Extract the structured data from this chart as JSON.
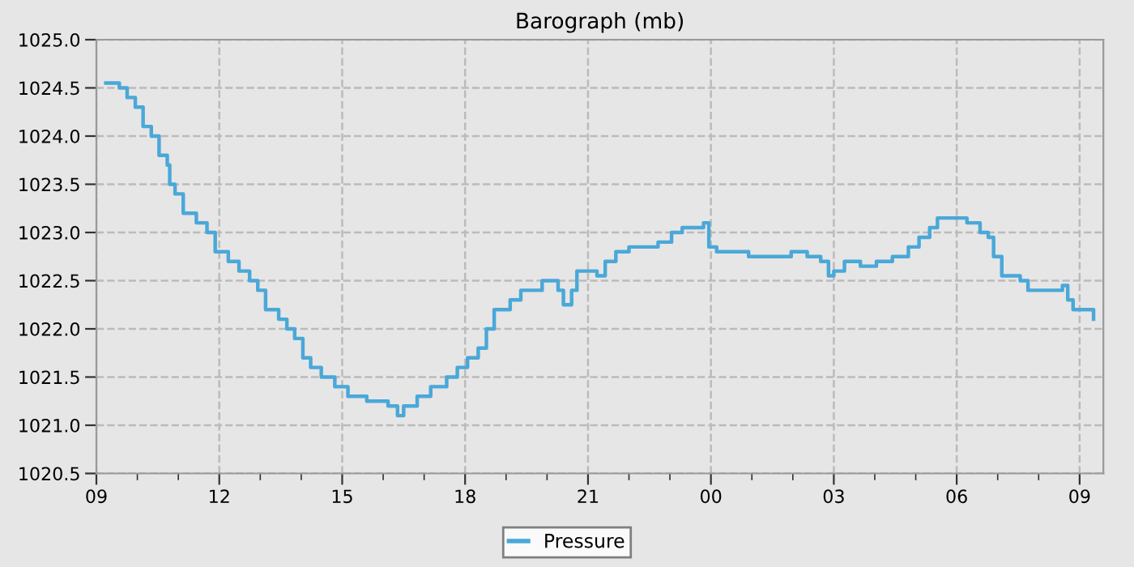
{
  "chart_data": {
    "type": "step",
    "title": "Barograph (mb)",
    "x": [
      9.23,
      9.56,
      9.75,
      9.95,
      10.14,
      10.34,
      10.53,
      10.73,
      10.79,
      10.92,
      11.12,
      11.44,
      11.7,
      11.9,
      12.22,
      12.48,
      12.74,
      12.94,
      13.13,
      13.45,
      13.65,
      13.84,
      14.04,
      14.23,
      14.49,
      14.82,
      15.14,
      15.6,
      16.12,
      16.35,
      16.5,
      16.83,
      17.16,
      17.55,
      17.81,
      18.06,
      18.32,
      18.52,
      18.71,
      19.1,
      19.36,
      19.88,
      20.27,
      20.4,
      20.6,
      20.73,
      21.22,
      21.42,
      21.68,
      22.0,
      22.32,
      22.71,
      23.04,
      23.3,
      23.62,
      23.82,
      23.95,
      24.14,
      24.53,
      24.92,
      25.44,
      25.96,
      26.35,
      26.68,
      26.87,
      27.0,
      27.26,
      27.65,
      28.04,
      28.43,
      28.82,
      29.08,
      29.34,
      29.53,
      29.79,
      30.25,
      30.57,
      30.77,
      30.9,
      31.1,
      31.55,
      31.74,
      32.2,
      32.58,
      32.71,
      32.84,
      33.3,
      33.34
    ],
    "series": [
      {
        "name": "Pressure",
        "color": "#4aa8d8",
        "values": [
          1024.55,
          1024.5,
          1024.4,
          1024.3,
          1024.1,
          1024.0,
          1023.8,
          1023.7,
          1023.5,
          1023.4,
          1023.2,
          1023.1,
          1023.0,
          1022.8,
          1022.7,
          1022.6,
          1022.5,
          1022.4,
          1022.2,
          1022.1,
          1022.0,
          1021.9,
          1021.7,
          1021.6,
          1021.5,
          1021.4,
          1021.3,
          1021.25,
          1021.2,
          1021.1,
          1021.2,
          1021.3,
          1021.4,
          1021.5,
          1021.6,
          1021.7,
          1021.8,
          1022.0,
          1022.2,
          1022.3,
          1022.4,
          1022.5,
          1022.4,
          1022.25,
          1022.4,
          1022.6,
          1022.55,
          1022.7,
          1022.8,
          1022.85,
          1022.85,
          1022.9,
          1023.0,
          1023.05,
          1023.05,
          1023.1,
          1022.85,
          1022.8,
          1022.8,
          1022.75,
          1022.75,
          1022.8,
          1022.75,
          1022.7,
          1022.55,
          1022.6,
          1022.7,
          1022.65,
          1022.7,
          1022.75,
          1022.85,
          1022.95,
          1023.05,
          1023.15,
          1023.15,
          1023.1,
          1023.0,
          1022.95,
          1022.75,
          1022.55,
          1022.5,
          1022.4,
          1022.4,
          1022.45,
          1022.3,
          1022.2,
          1022.2,
          1022.1
        ]
      }
    ],
    "xlim": [
      9,
      33.58
    ],
    "xticks": [
      {
        "value": 9,
        "label": "09"
      },
      {
        "value": 10,
        "label": null
      },
      {
        "value": 11,
        "label": null
      },
      {
        "value": 12,
        "label": "12"
      },
      {
        "value": 13,
        "label": null
      },
      {
        "value": 14,
        "label": null
      },
      {
        "value": 15,
        "label": "15"
      },
      {
        "value": 16,
        "label": null
      },
      {
        "value": 17,
        "label": null
      },
      {
        "value": 18,
        "label": "18"
      },
      {
        "value": 19,
        "label": null
      },
      {
        "value": 20,
        "label": null
      },
      {
        "value": 21,
        "label": "21"
      },
      {
        "value": 22,
        "label": null
      },
      {
        "value": 23,
        "label": null
      },
      {
        "value": 24,
        "label": "00"
      },
      {
        "value": 25,
        "label": null
      },
      {
        "value": 26,
        "label": null
      },
      {
        "value": 27,
        "label": "03"
      },
      {
        "value": 28,
        "label": null
      },
      {
        "value": 29,
        "label": null
      },
      {
        "value": 30,
        "label": "06"
      },
      {
        "value": 31,
        "label": null
      },
      {
        "value": 32,
        "label": null
      },
      {
        "value": 33,
        "label": "09"
      }
    ],
    "ylim": [
      1020.5,
      1025.0
    ],
    "yticks": [
      {
        "value": 1020.5,
        "label": "1020.5"
      },
      {
        "value": 1021.0,
        "label": "1021.0"
      },
      {
        "value": 1021.5,
        "label": "1021.5"
      },
      {
        "value": 1022.0,
        "label": "1022.0"
      },
      {
        "value": 1022.5,
        "label": "1022.5"
      },
      {
        "value": 1023.0,
        "label": "1023.0"
      },
      {
        "value": 1023.5,
        "label": "1023.5"
      },
      {
        "value": 1024.0,
        "label": "1024.0"
      },
      {
        "value": 1024.5,
        "label": "1024.5"
      },
      {
        "value": 1025.0,
        "label": "1025.0"
      }
    ],
    "grid": true,
    "legend": "bottom",
    "line_style": "solid",
    "marker": "none"
  }
}
